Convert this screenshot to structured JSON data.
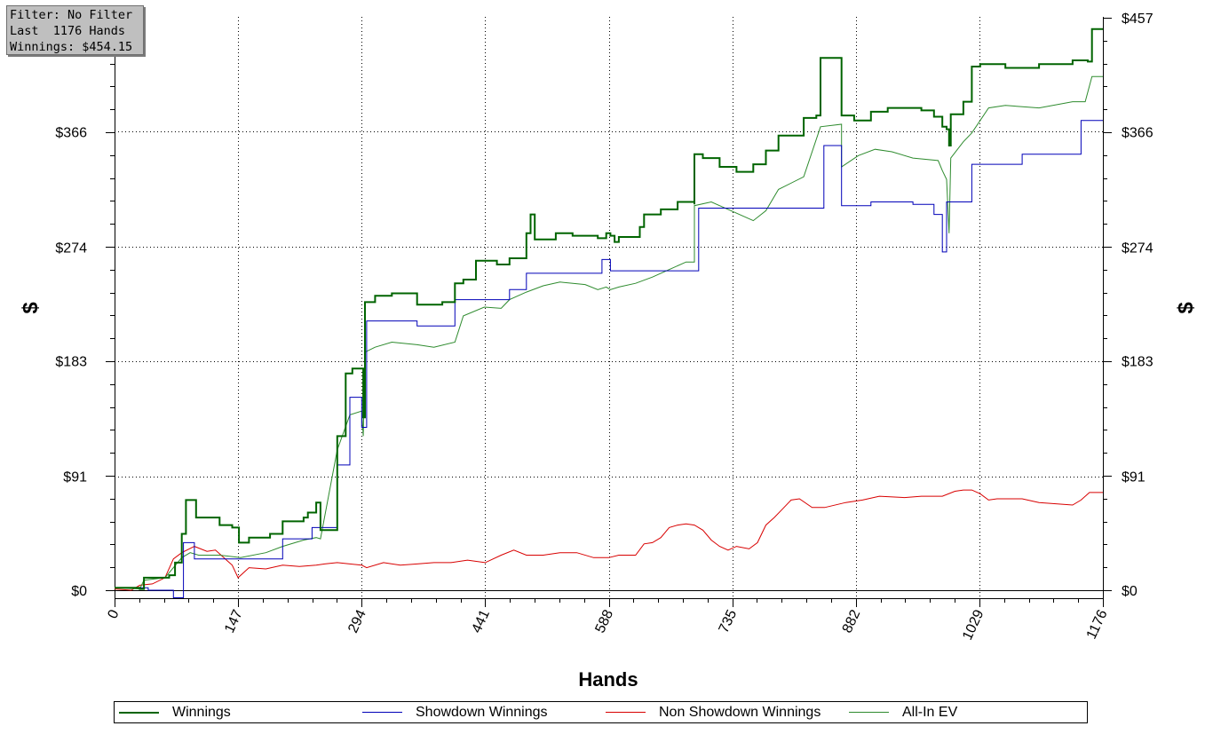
{
  "info_box": {
    "line1": "Filter: No Filter",
    "line2": "Last  1176 Hands",
    "line3": "Winnings: $454.15"
  },
  "chart_data": {
    "type": "line",
    "xlabel": "Hands",
    "ylabel": "$",
    "xlim": [
      0,
      1176
    ],
    "ylim": [
      -7,
      457
    ],
    "x_ticks": [
      "0",
      "147",
      "294",
      "441",
      "588",
      "735",
      "882",
      "1029",
      "1176"
    ],
    "y_ticks": [
      "$0",
      "$91",
      "$183",
      "$274",
      "$366",
      "$457"
    ],
    "grid": "dotted",
    "legend_position": "bottom",
    "series": [
      {
        "name": "Winnings",
        "color": "#006400",
        "step": true,
        "points": [
          [
            0,
            2
          ],
          [
            30,
            1
          ],
          [
            35,
            10
          ],
          [
            65,
            12
          ],
          [
            72,
            22
          ],
          [
            80,
            45
          ],
          [
            85,
            72
          ],
          [
            97,
            70
          ],
          [
            97,
            58
          ],
          [
            125,
            52
          ],
          [
            140,
            50
          ],
          [
            148,
            38
          ],
          [
            160,
            42
          ],
          [
            185,
            45
          ],
          [
            200,
            55
          ],
          [
            225,
            58
          ],
          [
            230,
            62
          ],
          [
            240,
            70
          ],
          [
            245,
            48
          ],
          [
            265,
            123
          ],
          [
            275,
            173
          ],
          [
            283,
            177
          ],
          [
            294,
            177
          ],
          [
            296,
            138
          ],
          [
            298,
            230
          ],
          [
            310,
            235
          ],
          [
            330,
            237
          ],
          [
            360,
            228
          ],
          [
            390,
            230
          ],
          [
            405,
            245
          ],
          [
            415,
            248
          ],
          [
            430,
            263
          ],
          [
            455,
            260
          ],
          [
            470,
            265
          ],
          [
            490,
            285
          ],
          [
            495,
            300
          ],
          [
            500,
            280
          ],
          [
            525,
            285
          ],
          [
            545,
            283
          ],
          [
            575,
            281
          ],
          [
            585,
            285
          ],
          [
            590,
            283
          ],
          [
            595,
            278
          ],
          [
            600,
            282
          ],
          [
            620,
            282
          ],
          [
            625,
            290
          ],
          [
            630,
            300
          ],
          [
            650,
            304
          ],
          [
            670,
            310
          ],
          [
            690,
            308
          ],
          [
            690,
            348
          ],
          [
            700,
            345
          ],
          [
            720,
            338
          ],
          [
            740,
            334
          ],
          [
            760,
            340
          ],
          [
            775,
            351
          ],
          [
            790,
            363
          ],
          [
            820,
            377
          ],
          [
            835,
            379
          ],
          [
            840,
            425
          ],
          [
            865,
            425
          ],
          [
            865,
            379
          ],
          [
            880,
            375
          ],
          [
            900,
            382
          ],
          [
            920,
            385
          ],
          [
            960,
            383
          ],
          [
            975,
            378
          ],
          [
            985,
            370
          ],
          [
            990,
            368
          ],
          [
            993,
            355
          ],
          [
            995,
            380
          ],
          [
            1010,
            390
          ],
          [
            1020,
            418
          ],
          [
            1030,
            420
          ],
          [
            1060,
            417
          ],
          [
            1100,
            420
          ],
          [
            1140,
            423
          ],
          [
            1158,
            422
          ],
          [
            1163,
            448
          ],
          [
            1176,
            448
          ]
        ]
      },
      {
        "name": "Showdown Winnings",
        "color": "#0000b8",
        "step": true,
        "points": [
          [
            0,
            2
          ],
          [
            40,
            0
          ],
          [
            70,
            -6
          ],
          [
            80,
            -6
          ],
          [
            82,
            38
          ],
          [
            95,
            38
          ],
          [
            95,
            25
          ],
          [
            155,
            25
          ],
          [
            200,
            29
          ],
          [
            200,
            41
          ],
          [
            235,
            50
          ],
          [
            240,
            50
          ],
          [
            265,
            100
          ],
          [
            280,
            154
          ],
          [
            294,
            154
          ],
          [
            294,
            130
          ],
          [
            300,
            215
          ],
          [
            360,
            215
          ],
          [
            360,
            211
          ],
          [
            405,
            211
          ],
          [
            405,
            232
          ],
          [
            470,
            240
          ],
          [
            490,
            240
          ],
          [
            490,
            253
          ],
          [
            580,
            253
          ],
          [
            580,
            264
          ],
          [
            588,
            264
          ],
          [
            590,
            255
          ],
          [
            690,
            255
          ],
          [
            695,
            305
          ],
          [
            844,
            305
          ],
          [
            844,
            355
          ],
          [
            865,
            355
          ],
          [
            865,
            307
          ],
          [
            900,
            310
          ],
          [
            950,
            308
          ],
          [
            975,
            300
          ],
          [
            985,
            270
          ],
          [
            990,
            310
          ],
          [
            1020,
            310
          ],
          [
            1020,
            340
          ],
          [
            1080,
            340
          ],
          [
            1080,
            348
          ],
          [
            1148,
            348
          ],
          [
            1150,
            375
          ],
          [
            1176,
            375
          ]
        ]
      },
      {
        "name": "Non Showdown Winnings",
        "color": "#d80000",
        "step": false,
        "points": [
          [
            0,
            1
          ],
          [
            20,
            0
          ],
          [
            30,
            4
          ],
          [
            45,
            5
          ],
          [
            60,
            10
          ],
          [
            70,
            25
          ],
          [
            80,
            30
          ],
          [
            95,
            35
          ],
          [
            110,
            31
          ],
          [
            120,
            32
          ],
          [
            140,
            20
          ],
          [
            147,
            10
          ],
          [
            160,
            18
          ],
          [
            180,
            17
          ],
          [
            200,
            20
          ],
          [
            220,
            19
          ],
          [
            240,
            20
          ],
          [
            250,
            21
          ],
          [
            265,
            22
          ],
          [
            294,
            20
          ],
          [
            300,
            18
          ],
          [
            320,
            22
          ],
          [
            340,
            20
          ],
          [
            360,
            21
          ],
          [
            380,
            22
          ],
          [
            400,
            22
          ],
          [
            420,
            24
          ],
          [
            441,
            22
          ],
          [
            460,
            28
          ],
          [
            475,
            32
          ],
          [
            490,
            28
          ],
          [
            510,
            28
          ],
          [
            530,
            30
          ],
          [
            550,
            30
          ],
          [
            570,
            26
          ],
          [
            588,
            26
          ],
          [
            600,
            28
          ],
          [
            620,
            28
          ],
          [
            630,
            37
          ],
          [
            640,
            38
          ],
          [
            650,
            42
          ],
          [
            660,
            50
          ],
          [
            670,
            52
          ],
          [
            680,
            53
          ],
          [
            690,
            52
          ],
          [
            700,
            48
          ],
          [
            710,
            40
          ],
          [
            720,
            35
          ],
          [
            730,
            32
          ],
          [
            740,
            35
          ],
          [
            755,
            33
          ],
          [
            765,
            38
          ],
          [
            775,
            52
          ],
          [
            785,
            58
          ],
          [
            795,
            65
          ],
          [
            805,
            72
          ],
          [
            815,
            73
          ],
          [
            830,
            66
          ],
          [
            845,
            66
          ],
          [
            870,
            70
          ],
          [
            890,
            72
          ],
          [
            910,
            75
          ],
          [
            940,
            74
          ],
          [
            960,
            75
          ],
          [
            985,
            75
          ],
          [
            1000,
            79
          ],
          [
            1010,
            80
          ],
          [
            1020,
            80
          ],
          [
            1030,
            77
          ],
          [
            1040,
            72
          ],
          [
            1050,
            73
          ],
          [
            1080,
            73
          ],
          [
            1100,
            70
          ],
          [
            1140,
            68
          ],
          [
            1150,
            72
          ],
          [
            1160,
            78
          ],
          [
            1176,
            78
          ]
        ]
      },
      {
        "name": "All-In EV",
        "color": "#2e8b2e",
        "step": false,
        "points": [
          [
            0,
            2
          ],
          [
            30,
            1
          ],
          [
            35,
            8
          ],
          [
            60,
            10
          ],
          [
            80,
            26
          ],
          [
            90,
            30
          ],
          [
            100,
            28
          ],
          [
            125,
            28
          ],
          [
            150,
            26
          ],
          [
            180,
            30
          ],
          [
            200,
            35
          ],
          [
            225,
            40
          ],
          [
            240,
            42
          ],
          [
            245,
            41
          ],
          [
            265,
            112
          ],
          [
            280,
            140
          ],
          [
            294,
            143
          ],
          [
            296,
            123
          ],
          [
            298,
            190
          ],
          [
            310,
            194
          ],
          [
            330,
            198
          ],
          [
            360,
            196
          ],
          [
            380,
            194
          ],
          [
            405,
            198
          ],
          [
            415,
            219
          ],
          [
            440,
            226
          ],
          [
            460,
            225
          ],
          [
            470,
            232
          ],
          [
            490,
            238
          ],
          [
            510,
            243
          ],
          [
            530,
            246
          ],
          [
            560,
            244
          ],
          [
            575,
            240
          ],
          [
            585,
            242
          ],
          [
            590,
            240
          ],
          [
            600,
            242
          ],
          [
            620,
            245
          ],
          [
            640,
            250
          ],
          [
            660,
            256
          ],
          [
            680,
            262
          ],
          [
            690,
            262
          ],
          [
            690,
            307
          ],
          [
            710,
            310
          ],
          [
            730,
            304
          ],
          [
            760,
            295
          ],
          [
            775,
            303
          ],
          [
            790,
            320
          ],
          [
            820,
            330
          ],
          [
            840,
            370
          ],
          [
            865,
            372
          ],
          [
            865,
            338
          ],
          [
            885,
            347
          ],
          [
            905,
            352
          ],
          [
            925,
            350
          ],
          [
            950,
            345
          ],
          [
            980,
            343
          ],
          [
            985,
            335
          ],
          [
            990,
            328
          ],
          [
            993,
            285
          ],
          [
            995,
            345
          ],
          [
            1010,
            358
          ],
          [
            1020,
            365
          ],
          [
            1040,
            385
          ],
          [
            1060,
            387
          ],
          [
            1100,
            385
          ],
          [
            1140,
            390
          ],
          [
            1155,
            390
          ],
          [
            1163,
            410
          ],
          [
            1176,
            410
          ]
        ]
      }
    ]
  }
}
